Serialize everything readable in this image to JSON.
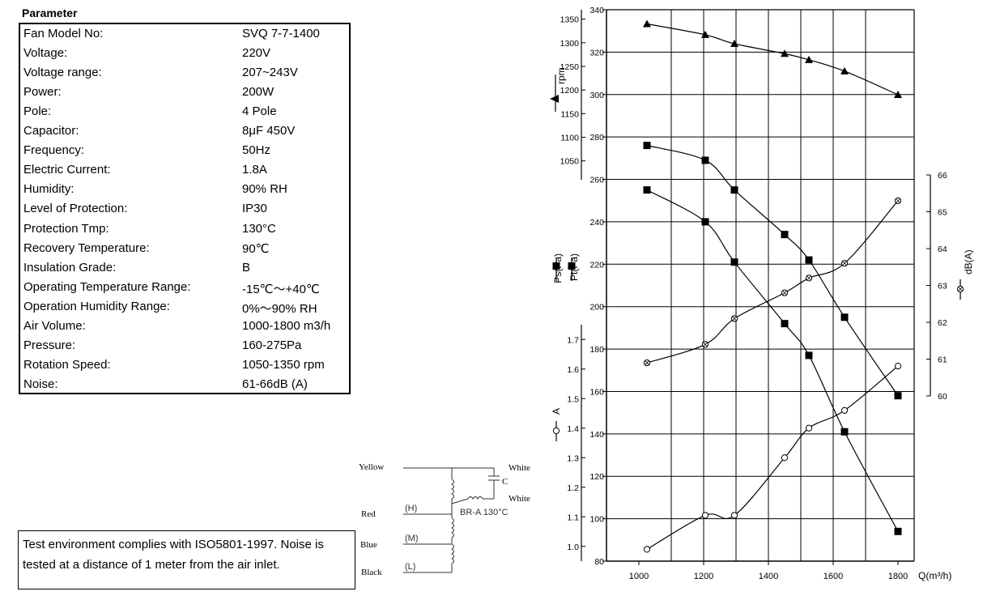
{
  "parameters": {
    "title": "Parameter",
    "rows": [
      {
        "label": "Fan Model No:",
        "value": "SVQ 7-7-1400"
      },
      {
        "label": "Voltage:",
        "value": "220V"
      },
      {
        "label": "Voltage range:",
        "value": "207~243V"
      },
      {
        "label": "Power:",
        "value": "200W"
      },
      {
        "label": "Pole:",
        "value": "4 Pole"
      },
      {
        "label": "Capacitor:",
        "value": "8μF 450V"
      },
      {
        "label": "Frequency:",
        "value": "50Hz"
      },
      {
        "label": "Electric Current:",
        "value": "1.8A"
      },
      {
        "label": "Humidity:",
        "value": "90% RH"
      },
      {
        "label": "Level of Protection:",
        "value": "IP30"
      },
      {
        "label": "Protection Tmp:",
        "value": "130°C"
      },
      {
        "label": "Recovery Temperature:",
        "value": "90℃"
      },
      {
        "label": "Insulation Grade:",
        "value": "B"
      },
      {
        "label": "Operating Temperature Range:",
        "value": "-15℃～+40℃"
      },
      {
        "label": "Operation Humidity Range:",
        "value": "0%～90% RH"
      },
      {
        "label": "Air Volume:",
        "value": "1000-1800 m3/h"
      },
      {
        "label": "Pressure:",
        "value": "160-275Pa"
      },
      {
        "label": "Rotation Speed:",
        "value": "1050-1350 rpm"
      },
      {
        "label": "Noise:",
        "value": "61-66dB (A)"
      }
    ]
  },
  "note": "Test environment complies with ISO5801-1997. Noise is tested at a distance of 1 meter from the air inlet.",
  "wiring": {
    "yellow": "Yellow",
    "red": "Red",
    "blue": "Blue",
    "black": "Black",
    "white_top": "White",
    "white_bottom": "White",
    "capacitor": "C",
    "protector": "BR-A 130°C",
    "tap_h": "(H)",
    "tap_m": "(M)",
    "tap_l": "(L)"
  },
  "chart_data": {
    "type": "line",
    "xlabel": "Q(m³/h)",
    "x_ticks": [
      "1000",
      "1200",
      "1400",
      "1600",
      "1800"
    ],
    "xlim": [
      900,
      1850
    ],
    "axes": {
      "rpm": {
        "label": "rpm",
        "lim": [
          1010,
          1370
        ],
        "ticks": [
          1050,
          1100,
          1150,
          1200,
          1250,
          1300,
          1350
        ]
      },
      "pressure": {
        "label_ps": "Ps(Pa)",
        "label_pt": "Pt(Pa)",
        "lim": [
          80,
          340
        ],
        "ticks": [
          80,
          100,
          120,
          140,
          160,
          180,
          200,
          220,
          240,
          260,
          280,
          300,
          320,
          340
        ]
      },
      "current": {
        "label": "A",
        "lim": [
          0.95,
          1.75
        ],
        "ticks": [
          1.0,
          1.1,
          1.2,
          1.3,
          1.4,
          1.5,
          1.6,
          1.7
        ]
      },
      "noise": {
        "label": "dB(A)",
        "lim": [
          60,
          66
        ],
        "ticks": [
          60,
          61,
          62,
          63,
          64,
          65,
          66
        ]
      }
    },
    "series": [
      {
        "key": "rpm",
        "axis": "rpm",
        "marker": "triangle",
        "x": [
          1025,
          1205,
          1295,
          1450,
          1525,
          1635,
          1800
        ],
        "y": [
          1340,
          1317,
          1298,
          1277,
          1264,
          1240,
          1190
        ]
      },
      {
        "key": "pt",
        "axis": "pressure",
        "marker": "square",
        "x": [
          1025,
          1205,
          1295,
          1450,
          1525,
          1635,
          1800
        ],
        "y": [
          276,
          269,
          255,
          234,
          222,
          195,
          158
        ]
      },
      {
        "key": "ps",
        "axis": "pressure",
        "marker": "square",
        "x": [
          1025,
          1205,
          1295,
          1450,
          1525,
          1635,
          1800
        ],
        "y": [
          255,
          240,
          221,
          192,
          177,
          141,
          94
        ]
      },
      {
        "key": "noise",
        "axis": "noise",
        "marker": "circle-x",
        "x": [
          1025,
          1205,
          1295,
          1450,
          1525,
          1635,
          1800
        ],
        "y": [
          60.9,
          61.4,
          62.1,
          62.8,
          63.2,
          63.6,
          65.3
        ]
      },
      {
        "key": "current",
        "axis": "current",
        "marker": "circle",
        "x": [
          1025,
          1205,
          1295,
          1450,
          1525,
          1635,
          1800
        ],
        "y": [
          0.99,
          1.105,
          1.105,
          1.3,
          1.4,
          1.46,
          1.61
        ]
      }
    ]
  }
}
